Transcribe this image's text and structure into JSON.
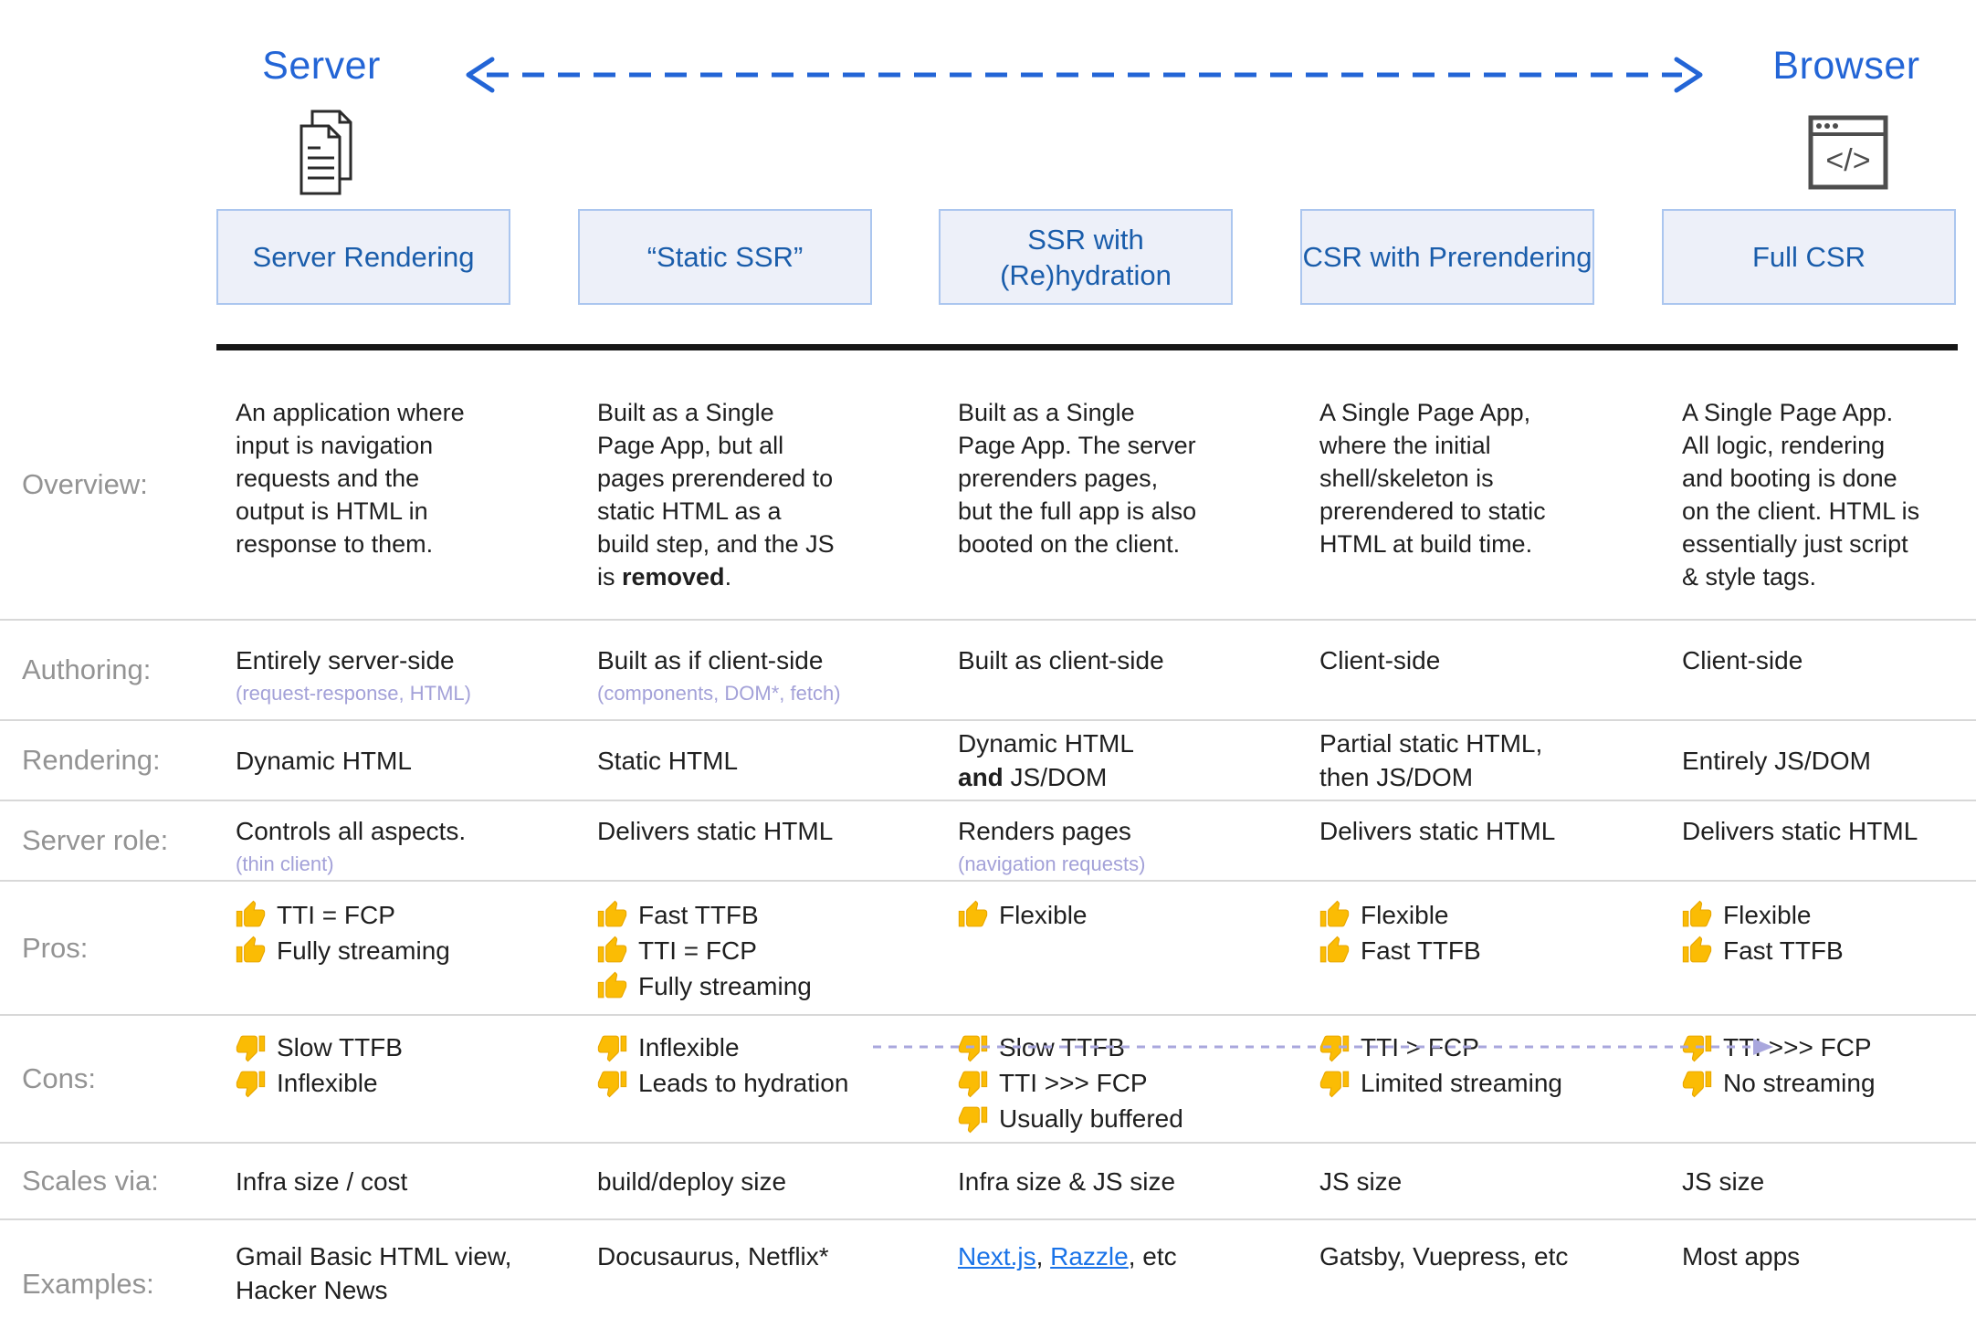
{
  "header": {
    "server_label": "Server",
    "browser_label": "Browser",
    "browser_icon_code": "</>"
  },
  "columns": [
    {
      "id": "server-rendering",
      "title": "Server Rendering"
    },
    {
      "id": "static-ssr",
      "title": "“Static SSR”"
    },
    {
      "id": "ssr-rehydration",
      "title": "SSR with (Re)hydration"
    },
    {
      "id": "csr-prerendering",
      "title": "CSR with Prerendering"
    },
    {
      "id": "full-csr",
      "title": "Full CSR"
    }
  ],
  "row_labels": {
    "overview": "Overview:",
    "authoring": "Authoring:",
    "rendering": "Rendering:",
    "server_role": "Server role:",
    "pros": "Pros:",
    "cons": "Cons:",
    "scales": "Scales via:",
    "examples": "Examples:"
  },
  "overview": {
    "c1": "An application where input is navigation requests and the output is HTML in response to them.",
    "c2_pre": "Built as a Single Page App, but all pages prerendered to static HTML as a build step, and the JS is ",
    "c2_bold": "removed",
    "c2_post": ".",
    "c3": "Built as a Single Page App. The server prerenders pages, but the full app is also booted on the client.",
    "c4": "A Single Page App, where the initial shell/skeleton is prerendered to static HTML at build time.",
    "c5": "A Single Page App. All logic, rendering and booting is done on the client. HTML is essentially just script & style tags."
  },
  "authoring": {
    "c1": "Entirely server-side",
    "c1_sub": "(request-response, HTML)",
    "c2": "Built as if client-side",
    "c2_sub": "(components, DOM*, fetch)",
    "c3": "Built as client-side",
    "c4": "Client-side",
    "c5": "Client-side"
  },
  "rendering": {
    "c1": "Dynamic HTML",
    "c2": "Static HTML",
    "c3_pre": "Dynamic HTML ",
    "c3_bold": "and",
    "c3_post": " JS/DOM",
    "c4": "Partial static HTML, then JS/DOM",
    "c5": "Entirely JS/DOM"
  },
  "server_role": {
    "c1": "Controls all aspects.",
    "c1_sub": "(thin client)",
    "c2": "Delivers static HTML",
    "c3": "Renders pages",
    "c3_sub": "(navigation requests)",
    "c4": "Delivers static HTML",
    "c5": "Delivers static HTML"
  },
  "pros": {
    "c1": [
      "TTI = FCP",
      "Fully streaming"
    ],
    "c2": [
      "Fast TTFB",
      "TTI = FCP",
      "Fully streaming"
    ],
    "c3": [
      "Flexible"
    ],
    "c4": [
      "Flexible",
      "Fast TTFB"
    ],
    "c5": [
      "Flexible",
      "Fast TTFB"
    ]
  },
  "cons": {
    "c1": [
      "Slow TTFB",
      "Inflexible"
    ],
    "c2": [
      "Inflexible",
      "Leads to hydration"
    ],
    "c3": [
      "Slow TTFB",
      "TTI >>> FCP",
      "Usually buffered"
    ],
    "c4": [
      "TTI > FCP",
      "Limited streaming"
    ],
    "c5": [
      "TTI >>> FCP",
      "No streaming"
    ]
  },
  "scales": {
    "c1": "Infra size / cost",
    "c2": "build/deploy size",
    "c3": "Infra size & JS size",
    "c4": "JS size",
    "c5": "JS size"
  },
  "examples": {
    "c1": "Gmail Basic HTML view, Hacker News",
    "c2": "Docusaurus, Netflix*",
    "c3_link1": "Next.js",
    "c3_sep": ", ",
    "c3_link2": "Razzle",
    "c3_post": ", etc",
    "c4": "Gatsby, Vuepress, etc",
    "c5": "Most apps"
  },
  "colors": {
    "accent_blue": "#2365d6",
    "box_text_blue": "#1a5dab",
    "box_border": "#abc6ef",
    "box_bg": "#edf0f9",
    "label_gray": "#939393",
    "note_purple": "#a3a1d8",
    "link_blue": "#1a73e8",
    "thumb_yellow": "#FBBC04"
  }
}
